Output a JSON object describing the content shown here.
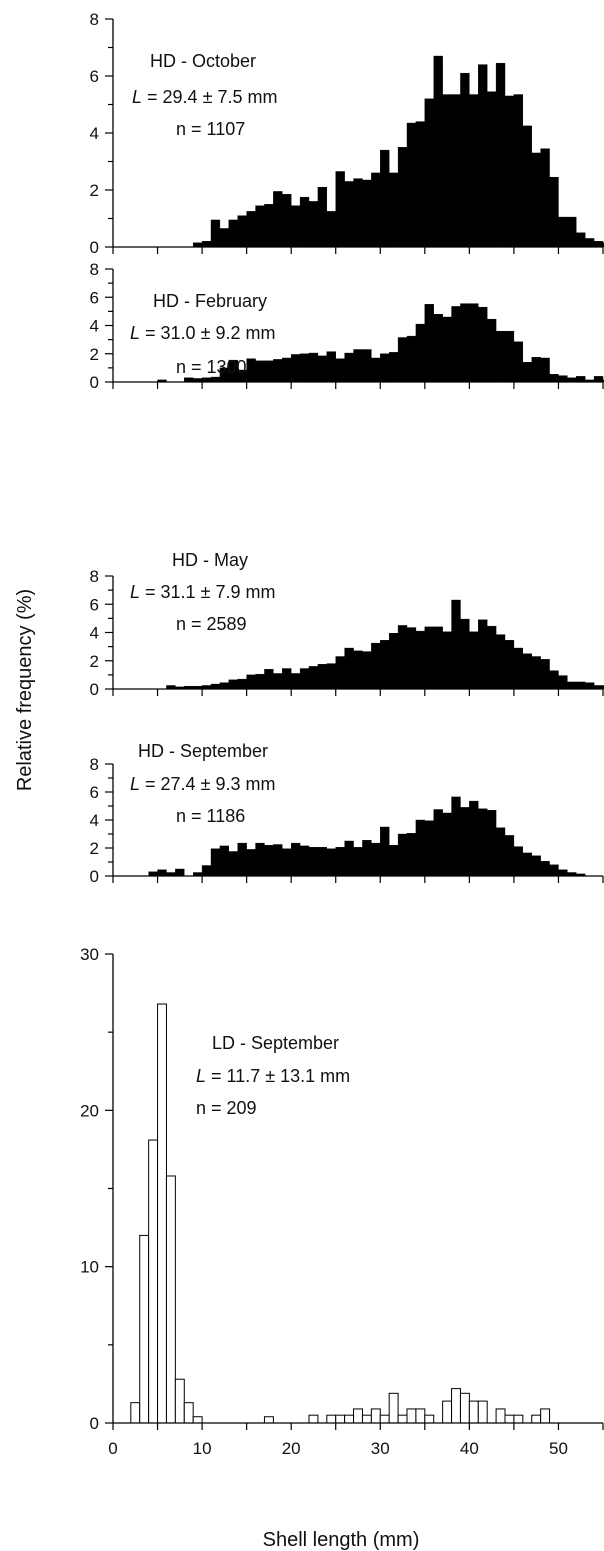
{
  "figure": {
    "ylabel": "Relative frequency (%)",
    "xlabel": "Shell length (mm)",
    "x_ticks": [
      "0",
      "10",
      "20",
      "30",
      "40",
      "50"
    ]
  },
  "chart_data": [
    {
      "type": "bar",
      "fill": "#000000",
      "annotation": {
        "title": "HD - October",
        "L_value": "= 29.4 ± 7.5 mm",
        "n_text": "n  = 1107"
      },
      "ylim": [
        0,
        8
      ],
      "y_ticks": [
        "0",
        "2",
        "4",
        "6",
        "8"
      ],
      "bins": {
        "start": 9,
        "width": 1
      },
      "values": [
        0.15,
        0.2,
        0.95,
        0.65,
        0.95,
        1.1,
        1.25,
        1.45,
        1.5,
        1.95,
        1.85,
        1.45,
        1.75,
        1.6,
        2.1,
        1.25,
        2.65,
        2.3,
        2.4,
        2.35,
        2.6,
        3.4,
        2.6,
        3.5,
        4.35,
        4.4,
        5.2,
        6.7,
        5.35,
        5.35,
        6.1,
        5.35,
        6.4,
        5.45,
        6.45,
        5.3,
        5.35,
        4.25,
        3.3,
        3.45,
        2.45,
        1.05,
        1.05,
        0.5,
        0.3,
        0.2,
        0.15
      ]
    },
    {
      "type": "bar",
      "fill": "#000000",
      "annotation": {
        "title": "HD - February",
        "L_value": "= 31.0 ± 9.2 mm",
        "n_text": "n  = 1300"
      },
      "ylim": [
        0,
        8
      ],
      "y_ticks": [
        "0",
        "2",
        "4",
        "6",
        "8"
      ],
      "bins": {
        "start": 5,
        "width": 1
      },
      "values": [
        0.15,
        0,
        0,
        0.3,
        0.25,
        0.3,
        0.35,
        1.0,
        1.55,
        0.85,
        1.65,
        1.5,
        1.5,
        1.6,
        1.7,
        1.95,
        2.0,
        2.05,
        1.85,
        2.15,
        1.65,
        2.05,
        2.3,
        2.3,
        1.7,
        2.0,
        2.1,
        3.15,
        3.25,
        4.1,
        5.5,
        4.8,
        4.6,
        5.35,
        5.55,
        5.55,
        5.3,
        4.45,
        3.6,
        3.6,
        2.85,
        1.4,
        1.75,
        1.7,
        0.55,
        0.45,
        0.3,
        0.4,
        0.15,
        0.4,
        0.15
      ]
    },
    {
      "type": "bar",
      "fill": "#000000",
      "annotation": {
        "title": "HD - May",
        "L_value": "= 31.1 ± 7.9 mm",
        "n_text": "n  = 2589"
      },
      "ylim": [
        0,
        8
      ],
      "y_ticks": [
        "0",
        "2",
        "4",
        "6",
        "8"
      ],
      "bins": {
        "start": 6,
        "width": 1
      },
      "values": [
        0.25,
        0.15,
        0.2,
        0.2,
        0.25,
        0.35,
        0.45,
        0.65,
        0.7,
        1.0,
        1.05,
        1.4,
        1.1,
        1.45,
        1.1,
        1.45,
        1.6,
        1.75,
        1.8,
        2.3,
        2.9,
        2.7,
        2.65,
        3.25,
        3.45,
        3.95,
        4.5,
        4.35,
        4.1,
        4.4,
        4.4,
        4.05,
        6.3,
        4.95,
        4.05,
        4.9,
        4.45,
        3.85,
        3.45,
        2.9,
        2.5,
        2.3,
        2.1,
        1.3,
        0.95,
        0.5,
        0.5,
        0.45,
        0.25,
        0.25,
        0.2
      ]
    },
    {
      "type": "bar",
      "fill": "#000000",
      "annotation": {
        "title": "HD - September",
        "L_value": "= 27.4 ± 9.3 mm",
        "n_text": "n  = 1186"
      },
      "ylim": [
        0,
        8
      ],
      "y_ticks": [
        "0",
        "2",
        "4",
        "6",
        "8"
      ],
      "bins": {
        "start": 4,
        "width": 1
      },
      "values": [
        0.3,
        0.45,
        0.25,
        0.5,
        0,
        0.25,
        0.75,
        1.95,
        2.15,
        1.75,
        2.35,
        1.9,
        2.35,
        2.2,
        2.25,
        1.95,
        2.35,
        2.15,
        2.05,
        2.05,
        1.95,
        2.05,
        2.5,
        2.05,
        2.55,
        2.35,
        3.5,
        2.2,
        3.0,
        3.05,
        4.0,
        3.95,
        4.75,
        4.5,
        5.65,
        4.9,
        5.35,
        4.8,
        4.7,
        3.45,
        2.9,
        2.1,
        1.65,
        1.45,
        1.05,
        0.8,
        0.45,
        0.25,
        0.15
      ]
    },
    {
      "type": "bar",
      "fill": "#ffffff",
      "annotation": {
        "title": "LD - September",
        "L_value": "= 11.7 ± 13.1 mm",
        "n_text": "n = 209"
      },
      "ylim": [
        0,
        30
      ],
      "y_ticks": [
        "0",
        "10",
        "20",
        "30"
      ],
      "bins": {
        "start": 2,
        "width": 1
      },
      "values": [
        1.3,
        12.0,
        18.1,
        26.8,
        15.8,
        2.8,
        1.3,
        0.4,
        0,
        0,
        0,
        0,
        0,
        0,
        0,
        0.4,
        0,
        0,
        0,
        0,
        0.5,
        0,
        0.5,
        0.5,
        0.5,
        0.9,
        0.5,
        0.9,
        0.5,
        1.9,
        0.5,
        0.9,
        0.9,
        0.5,
        0,
        1.4,
        2.2,
        1.9,
        1.4,
        1.4,
        0,
        0.9,
        0.5,
        0.5,
        0,
        0.5,
        0.9
      ]
    }
  ]
}
